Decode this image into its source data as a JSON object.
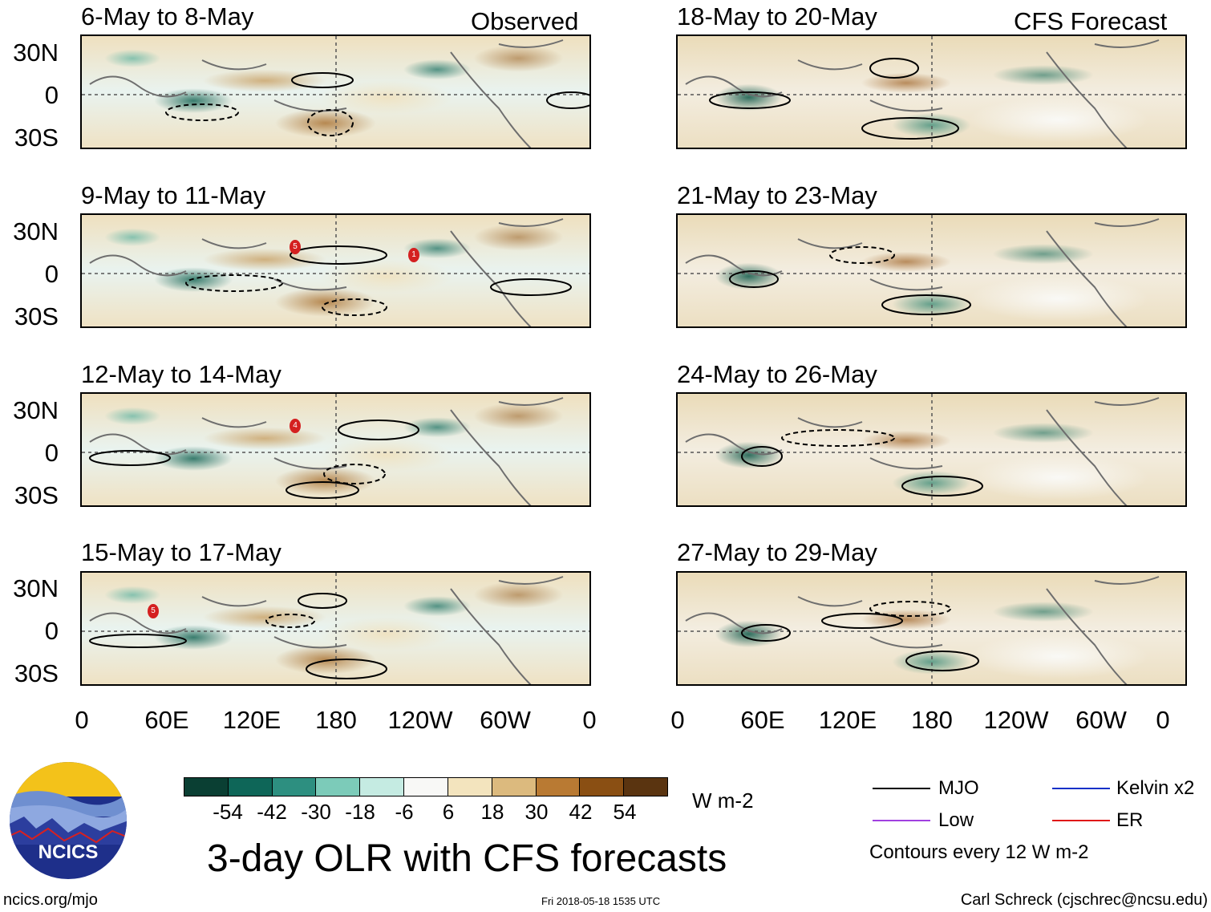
{
  "observed_label": "Observed",
  "forecast_label": "CFS Forecast",
  "observed_panels": [
    {
      "title": "6-May to 8-May",
      "storms": []
    },
    {
      "title": "9-May to 11-May",
      "storms": [
        "5",
        "1"
      ]
    },
    {
      "title": "12-May to 14-May",
      "storms": [
        "4"
      ]
    },
    {
      "title": "15-May to 17-May",
      "storms": [
        "5"
      ]
    }
  ],
  "forecast_panels": [
    {
      "title": "18-May to 20-May"
    },
    {
      "title": "21-May to 23-May"
    },
    {
      "title": "24-May to 26-May"
    },
    {
      "title": "27-May to 29-May"
    }
  ],
  "lat_labels": [
    "30N",
    "0",
    "30S"
  ],
  "lon_labels": [
    "0",
    "60E",
    "120E",
    "180",
    "120W",
    "60W",
    "0"
  ],
  "colorbar": {
    "ticks": [
      "-54",
      "-42",
      "-30",
      "-18",
      "-6",
      "6",
      "18",
      "30",
      "42",
      "54"
    ],
    "colors": [
      "#0a3f33",
      "#0e6658",
      "#2d8f80",
      "#7ccbb9",
      "#c5ebe2",
      "#f8f8f6",
      "#f3e4be",
      "#dcba7e",
      "#b97a33",
      "#8a4f13",
      "#5a3410"
    ],
    "unit": "W m-2"
  },
  "title": "3-day OLR with CFS forecasts",
  "legend": {
    "mjo": "MJO",
    "kelvin": "Kelvin x2",
    "low": "Low",
    "er": "ER",
    "colors": {
      "mjo": "#000000",
      "kelvin": "#1030c8",
      "low": "#a040e0",
      "er": "#e01818"
    },
    "contour_note": "Contours every 12 W m-2"
  },
  "logo_text": "NCICS",
  "footer": {
    "url": "ncics.org/mjo",
    "timestamp": "Fri 2018-05-18 1535 UTC",
    "author": "Carl Schreck (cjschrec@ncsu.edu)"
  }
}
